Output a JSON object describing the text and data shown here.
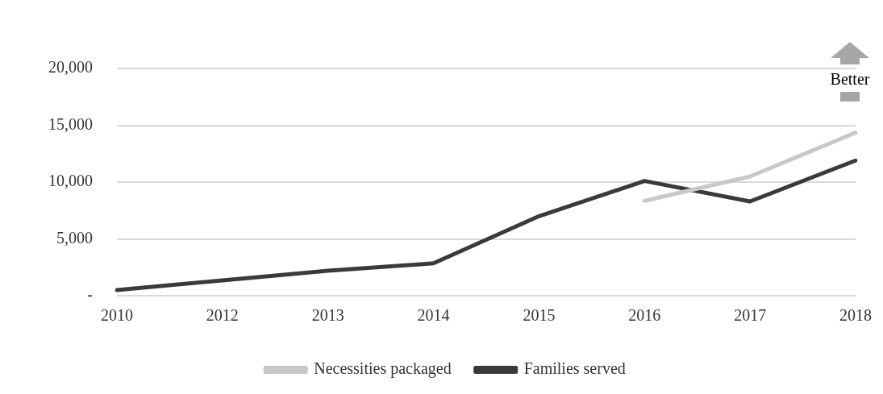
{
  "chart_data": {
    "type": "line",
    "categories": [
      "2010",
      "2012",
      "2013",
      "2014",
      "2015",
      "2016",
      "2017",
      "2018"
    ],
    "series": [
      {
        "name": "Necessities packaged",
        "color": "#c8c8c8",
        "values": [
          null,
          null,
          null,
          null,
          null,
          8350,
          10500,
          14350
        ]
      },
      {
        "name": "Families served",
        "color": "#3a3a3a",
        "values": [
          500,
          1350,
          2200,
          2850,
          7000,
          10100,
          8300,
          11900
        ]
      }
    ],
    "ylim": [
      0,
      20000
    ],
    "yticks": [
      {
        "value": 0,
        "label": "-"
      },
      {
        "value": 5000,
        "label": "5,000"
      },
      {
        "value": 10000,
        "label": "10,000"
      },
      {
        "value": 15000,
        "label": "15,000"
      },
      {
        "value": 20000,
        "label": "20,000"
      }
    ],
    "grid": "y",
    "legend": "bottom",
    "marker": "none",
    "line_style": "solid",
    "annotations": [
      "Better"
    ]
  }
}
